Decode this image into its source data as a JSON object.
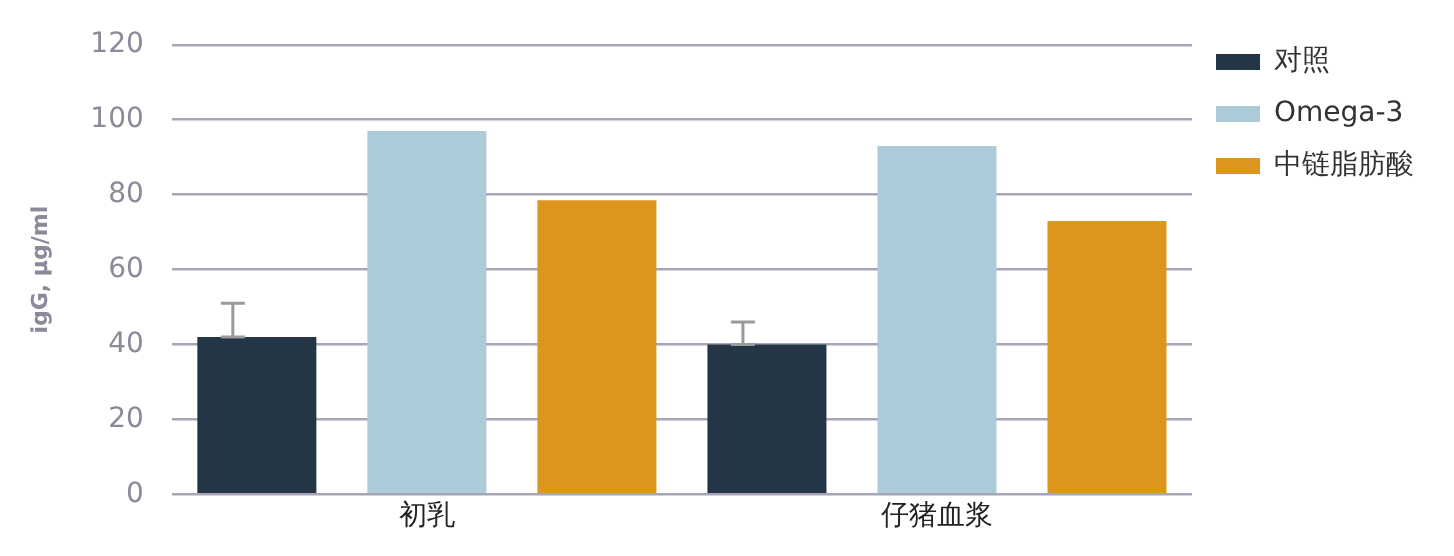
{
  "chart_data": {
    "type": "bar",
    "ylabel": "igG, µg/ml",
    "categories": [
      "初乳",
      "仔猪血浆"
    ],
    "series": [
      {
        "name": "对照",
        "color": "#243546",
        "values": [
          42,
          40
        ],
        "errors": [
          [
            42,
            51
          ],
          [
            40,
            46
          ]
        ]
      },
      {
        "name": "Omega-3",
        "color": "#adcad9",
        "values": [
          97,
          93
        ]
      },
      {
        "name": "中链脂肪酸",
        "color": "#dc961d",
        "values": [
          78.5,
          73
        ]
      }
    ],
    "ylim": [
      0,
      120
    ],
    "yticks": [
      0,
      20,
      40,
      60,
      80,
      100,
      120
    ],
    "grid": "y",
    "legend": "right"
  }
}
